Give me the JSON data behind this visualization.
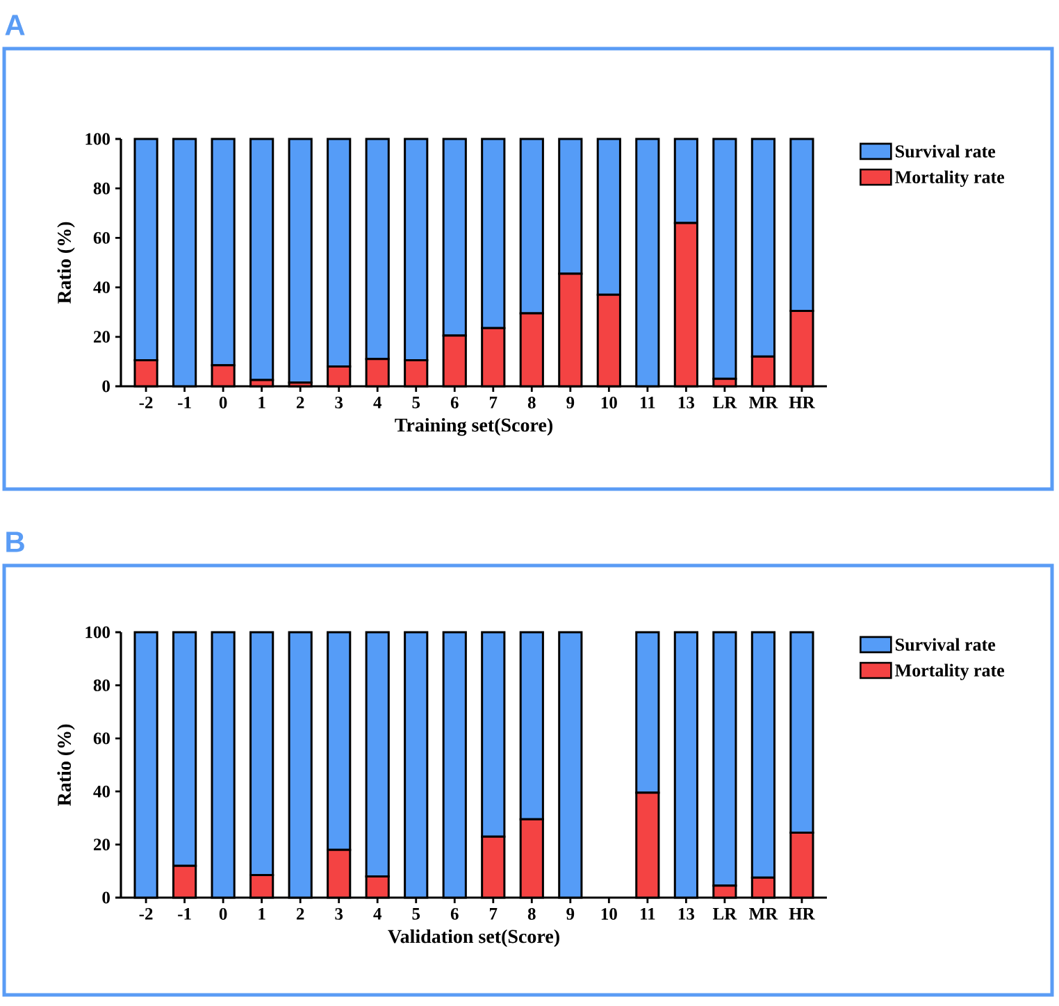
{
  "chart_data": [
    {
      "type": "bar",
      "title": "A",
      "stacked": true,
      "legend": "top right",
      "xlabel": "Training set(Score)",
      "ylabel": "Ratio (%)",
      "categories": [
        "-2",
        "-1",
        "0",
        "1",
        "2",
        "3",
        "4",
        "5",
        "6",
        "7",
        "8",
        "9",
        "10",
        "11",
        "13",
        "LR",
        "MR",
        "HR"
      ],
      "ylim": [
        0,
        100
      ],
      "yticks": [
        0,
        20,
        40,
        60,
        80,
        100
      ],
      "series": [
        {
          "name": "Mortality rate",
          "color": "#f44343",
          "values": [
            10.5,
            0,
            8.5,
            2.5,
            1.5,
            8,
            11,
            10.5,
            20.5,
            23.5,
            29.5,
            45.5,
            37,
            0,
            66,
            3,
            12,
            30.5
          ]
        },
        {
          "name": "Survival rate",
          "color": "#559cf7",
          "values": [
            89.5,
            100,
            91.5,
            97.5,
            98.5,
            92,
            89,
            89.5,
            79.5,
            76.5,
            70.5,
            54.5,
            63,
            100,
            34,
            97,
            88,
            69.5
          ]
        }
      ]
    },
    {
      "type": "bar",
      "title": "B",
      "stacked": true,
      "legend": "top right",
      "xlabel": "Validation set(Score)",
      "ylabel": "Ratio (%)",
      "categories": [
        "-2",
        "-1",
        "0",
        "1",
        "2",
        "3",
        "4",
        "5",
        "6",
        "7",
        "8",
        "9",
        "10",
        "11",
        "13",
        "LR",
        "MR",
        "HR"
      ],
      "ylim": [
        0,
        100
      ],
      "yticks": [
        0,
        20,
        40,
        60,
        80,
        100
      ],
      "series": [
        {
          "name": "Mortality rate",
          "color": "#f44343",
          "values": [
            0,
            12,
            0,
            8.5,
            0,
            18,
            8,
            0,
            0,
            23,
            29.5,
            0,
            null,
            39.5,
            0,
            4.5,
            7.5,
            24.5
          ]
        },
        {
          "name": "Survival rate",
          "color": "#559cf7",
          "values": [
            100,
            88,
            100,
            91.5,
            100,
            82,
            92,
            100,
            100,
            77,
            70.5,
            100,
            null,
            60.5,
            100,
            95.5,
            92.5,
            75.5
          ]
        }
      ]
    }
  ]
}
